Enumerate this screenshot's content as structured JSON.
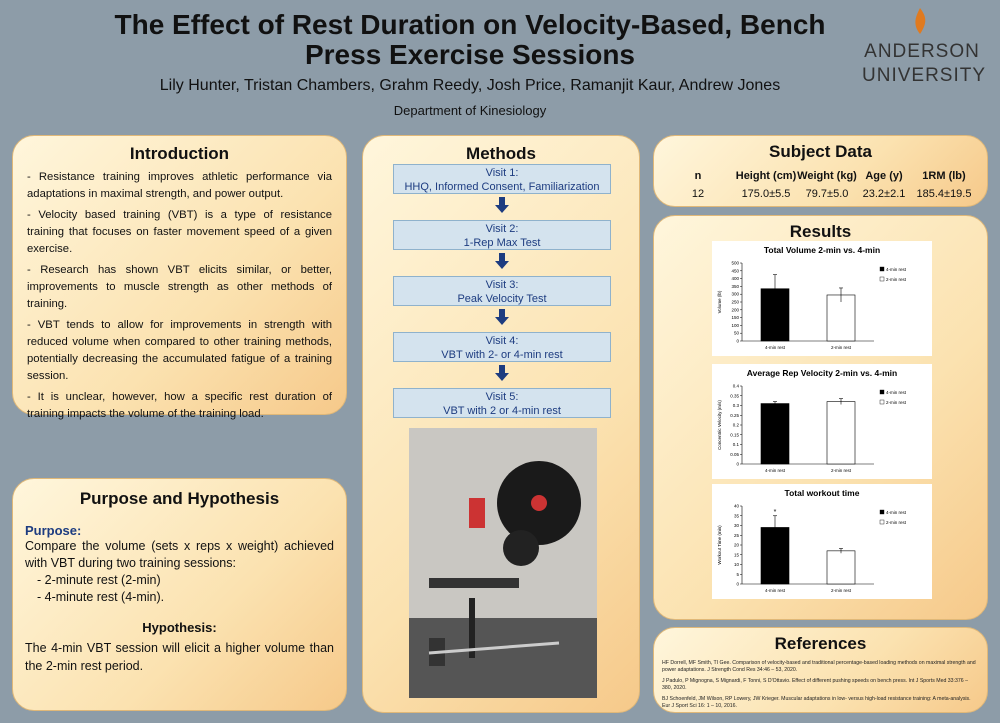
{
  "header": {
    "title_lines": [
      "The Effect of Rest Duration on Velocity-Based, Bench",
      "Press Exercise Sessions"
    ],
    "authors": "Lily Hunter, Tristan Chambers, Grahm Reedy, Josh Price, Ramanjit Kaur, Andrew Jones",
    "department": "Department of Kinesiology",
    "logo": [
      "ANDERSON",
      "UNIVERSITY"
    ]
  },
  "introduction": {
    "heading": "Introduction",
    "bullets": [
      "- Resistance training improves athletic performance via adaptations in maximal strength, and power output.",
      "- Velocity based training (VBT) is a type of resistance training that focuses on faster movement speed of a given exercise.",
      "- Research has shown VBT elicits similar, or better, improvements to muscle strength as other methods of training.",
      "- VBT tends to allow for improvements in strength with reduced volume when compared to other training methods, potentially decreasing the accumulated fatigue of a training session.",
      "- It is unclear, however, how a specific rest duration of training impacts the volume of the training load."
    ]
  },
  "purpose": {
    "heading": "Purpose and Hypothesis",
    "purpose_label": "Purpose:",
    "purpose_text": "Compare the volume (sets x reps x weight) achieved with VBT during two training sessions:",
    "list": [
      "- 2-minute rest (2-min)",
      "- 4-minute rest (4-min)."
    ],
    "hypothesis_label": "Hypothesis:",
    "hypothesis_text": "The 4-min VBT session will elicit a higher volume than the 2-min rest period."
  },
  "methods": {
    "heading": "Methods",
    "visits": [
      {
        "title": "Visit 1:",
        "text": "HHQ, Informed Consent, Familiarization"
      },
      {
        "title": "Visit 2:",
        "text": "1-Rep Max Test"
      },
      {
        "title": "Visit 3:",
        "text": "Peak Velocity Test"
      },
      {
        "title": "Visit 4:",
        "text": "VBT with 2- or 4-min rest"
      },
      {
        "title": "Visit 5:",
        "text": "VBT with 2 or 4-min rest"
      }
    ]
  },
  "subject_data": {
    "heading": "Subject Data",
    "columns": [
      "n",
      "Height (cm)",
      "Weight (kg)",
      "Age (y)",
      "1RM (lb)"
    ],
    "row": [
      "12",
      "175.0±5.5",
      "79.7±5.0",
      "23.2±2.1",
      "185.4±19.5"
    ]
  },
  "results": {
    "heading": "Results",
    "charts": [
      {
        "type": "bar",
        "title": "Total Volume 2-min vs. 4-min",
        "ylabel": "Volume (lb)",
        "categories": [
          "4-min rest",
          "2-min rest"
        ],
        "values": [
          335,
          295
        ],
        "errors": [
          90,
          45
        ],
        "colors": [
          "#000000",
          "#ffffff"
        ],
        "ylim": [
          0,
          500
        ],
        "yticks": [
          0,
          50,
          100,
          150,
          200,
          250,
          300,
          350,
          400,
          450,
          500
        ]
      },
      {
        "type": "bar",
        "title": "Average Rep Velocity 2-min vs. 4-min",
        "ylabel": "Concentric Velocity (m/s)",
        "categories": [
          "4-min rest",
          "2-min rest"
        ],
        "values": [
          0.31,
          0.32
        ],
        "errors": [
          0.01,
          0.015
        ],
        "colors": [
          "#000000",
          "#ffffff"
        ],
        "ylim": [
          0,
          0.4
        ],
        "yticks": [
          0,
          0.05,
          0.1,
          0.15,
          0.2,
          0.25,
          0.3,
          0.35,
          0.4
        ]
      },
      {
        "type": "bar",
        "title": "Total workout time",
        "ylabel": "Workout Time (min)",
        "categories": [
          "4-min rest",
          "2-min rest"
        ],
        "values": [
          29,
          17
        ],
        "errors": [
          6,
          1.2
        ],
        "colors": [
          "#000000",
          "#ffffff"
        ],
        "ylim": [
          0,
          40
        ],
        "yticks": [
          0,
          5,
          10,
          15,
          20,
          25,
          30,
          35,
          40
        ],
        "annotation": "*"
      }
    ]
  },
  "references": {
    "heading": "References",
    "items": [
      "HF Dorrell, MF Smith, TI Gee. Comparison of velocity-based and traditional percentage-based loading methods on maximal strength and power adaptations. J Strength Cond Res 34:46 – 53, 2020.",
      "J Padulo, P Mignogna, S Mignardi, F Tonni, S D'Ottavio. Effect of different pushing speeds on bench press. Int J Sports Med 33:376 – 380, 2020.",
      "BJ Schoenfeld, JM Wilson, RP Lowery, JW Krieger. Muscular adaptations in low- versus high-load resistance training: A meta-analysis. Eur J Sport Sci 16: 1 – 10, 2016."
    ]
  }
}
